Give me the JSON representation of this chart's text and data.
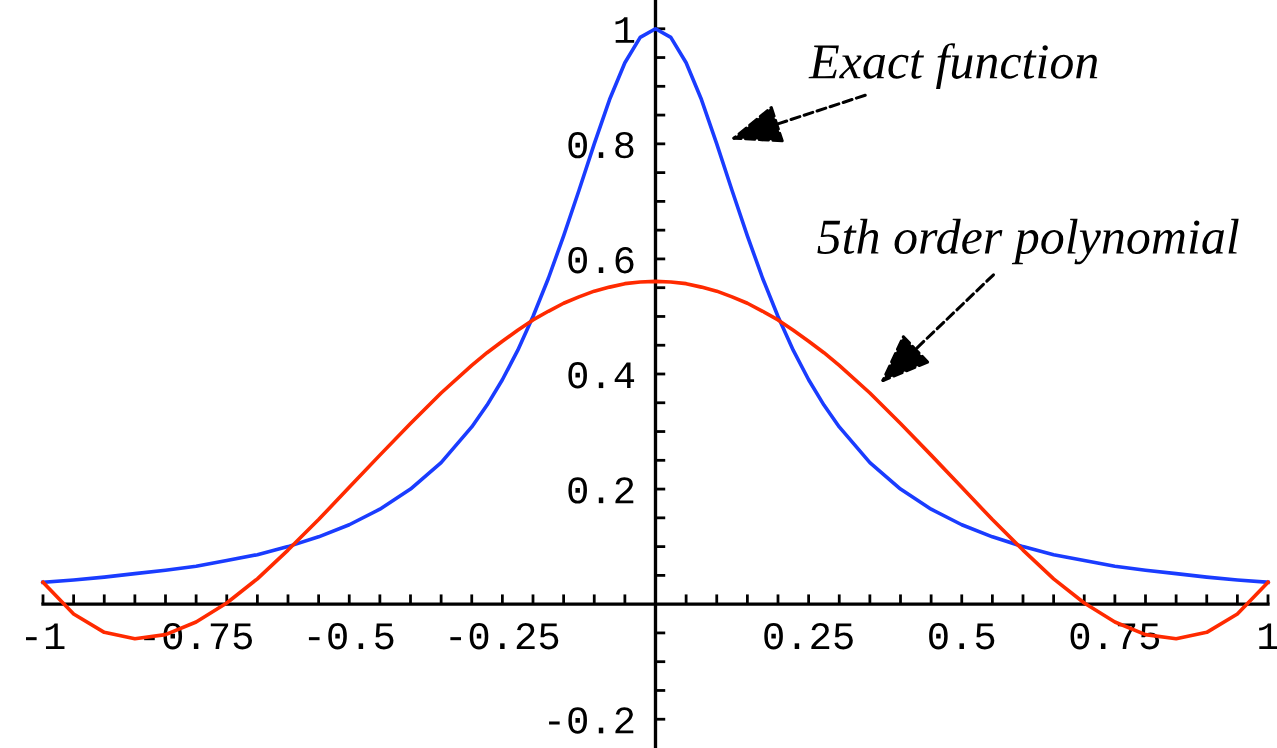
{
  "chart_data": {
    "type": "line",
    "x": [
      -1,
      -0.95,
      -0.9,
      -0.85,
      -0.8,
      -0.75,
      -0.7,
      -0.65,
      -0.6,
      -0.55,
      -0.5,
      -0.45,
      -0.4,
      -0.35,
      -0.3,
      -0.275,
      -0.25,
      -0.225,
      -0.2,
      -0.175,
      -0.15,
      -0.125,
      -0.1,
      -0.075,
      -0.05,
      -0.025,
      0,
      0.025,
      0.05,
      0.075,
      0.1,
      0.125,
      0.15,
      0.175,
      0.2,
      0.225,
      0.25,
      0.275,
      0.3,
      0.35,
      0.4,
      0.45,
      0.5,
      0.55,
      0.6,
      0.65,
      0.7,
      0.75,
      0.8,
      0.85,
      0.9,
      0.95,
      1
    ],
    "series": [
      {
        "color": "#1a3cff",
        "values": [
          0.038,
          0.042,
          0.047,
          0.053,
          0.059,
          0.066,
          0.076,
          0.086,
          0.1,
          0.117,
          0.138,
          0.165,
          0.2,
          0.246,
          0.308,
          0.346,
          0.39,
          0.441,
          0.5,
          0.566,
          0.64,
          0.719,
          0.8,
          0.877,
          0.941,
          0.985,
          1,
          0.985,
          0.941,
          0.877,
          0.8,
          0.719,
          0.64,
          0.566,
          0.5,
          0.441,
          0.39,
          0.346,
          0.308,
          0.246,
          0.2,
          0.165,
          0.138,
          0.117,
          0.1,
          0.086,
          0.076,
          0.066,
          0.059,
          0.053,
          0.047,
          0.042,
          0.038
        ]
      },
      {
        "color": "#ff2a00",
        "values": [
          0.038,
          -0.017,
          -0.049,
          -0.06,
          -0.053,
          -0.031,
          0.002,
          0.044,
          0.094,
          0.147,
          0.203,
          0.259,
          0.314,
          0.367,
          0.415,
          0.437,
          0.457,
          0.476,
          0.494,
          0.509,
          0.523,
          0.534,
          0.544,
          0.551,
          0.557,
          0.56,
          0.561,
          0.56,
          0.557,
          0.551,
          0.544,
          0.534,
          0.523,
          0.509,
          0.494,
          0.476,
          0.457,
          0.437,
          0.415,
          0.367,
          0.314,
          0.259,
          0.203,
          0.147,
          0.094,
          0.044,
          0.002,
          -0.031,
          -0.053,
          -0.06,
          -0.049,
          -0.017,
          0.038
        ]
      }
    ],
    "xlim": [
      -1,
      1
    ],
    "ylim": [
      -0.25,
      1.05
    ],
    "xticks": [
      -1,
      {
        "value": -0.95,
        "label": null
      },
      {
        "value": -0.9,
        "label": null
      },
      {
        "value": -0.85,
        "label": null
      },
      {
        "value": -0.8,
        "label": null
      },
      -0.75,
      {
        "value": -0.7,
        "label": null
      },
      {
        "value": -0.65,
        "label": null
      },
      {
        "value": -0.6,
        "label": null
      },
      {
        "value": -0.55,
        "label": null
      },
      -0.5,
      {
        "value": -0.45,
        "label": null
      },
      {
        "value": -0.4,
        "label": null
      },
      {
        "value": -0.35,
        "label": null
      },
      {
        "value": -0.3,
        "label": null
      },
      -0.25,
      {
        "value": -0.2,
        "label": null
      },
      {
        "value": -0.15,
        "label": null
      },
      {
        "value": -0.1,
        "label": null
      },
      {
        "value": -0.05,
        "label": null
      },
      {
        "value": 0.05,
        "label": null
      },
      {
        "value": 0.1,
        "label": null
      },
      {
        "value": 0.15,
        "label": null
      },
      {
        "value": 0.2,
        "label": null
      },
      0.25,
      {
        "value": 0.3,
        "label": null
      },
      {
        "value": 0.35,
        "label": null
      },
      {
        "value": 0.4,
        "label": null
      },
      {
        "value": 0.45,
        "label": null
      },
      0.5,
      {
        "value": 0.55,
        "label": null
      },
      {
        "value": 0.6,
        "label": null
      },
      {
        "value": 0.65,
        "label": null
      },
      {
        "value": 0.7,
        "label": null
      },
      0.75,
      {
        "value": 0.8,
        "label": null
      },
      {
        "value": 0.85,
        "label": null
      },
      {
        "value": 0.9,
        "label": null
      },
      {
        "value": 0.95,
        "label": null
      },
      1
    ],
    "yticks": [
      -0.2,
      {
        "value": -0.15,
        "label": null
      },
      {
        "value": -0.1,
        "label": null
      },
      {
        "value": -0.05,
        "label": null
      },
      {
        "value": 0.05,
        "label": null
      },
      {
        "value": 0.1,
        "label": null
      },
      {
        "value": 0.15,
        "label": null
      },
      0.2,
      {
        "value": 0.25,
        "label": null
      },
      {
        "value": 0.3,
        "label": null
      },
      {
        "value": 0.35,
        "label": null
      },
      0.4,
      {
        "value": 0.45,
        "label": null
      },
      {
        "value": 0.5,
        "label": null
      },
      {
        "value": 0.55,
        "label": null
      },
      0.6,
      {
        "value": 0.65,
        "label": null
      },
      {
        "value": 0.7,
        "label": null
      },
      {
        "value": 0.75,
        "label": null
      },
      0.8,
      {
        "value": 0.85,
        "label": null
      },
      {
        "value": 0.9,
        "label": null
      },
      {
        "value": 0.95,
        "label": null
      },
      1
    ],
    "line_style": "solid",
    "annotations": [
      {
        "text": "Exact function",
        "x": 0.1,
        "y": 0.8
      },
      {
        "text": "5th order polynomial",
        "x": 0.35,
        "y": 0.367
      }
    ]
  }
}
